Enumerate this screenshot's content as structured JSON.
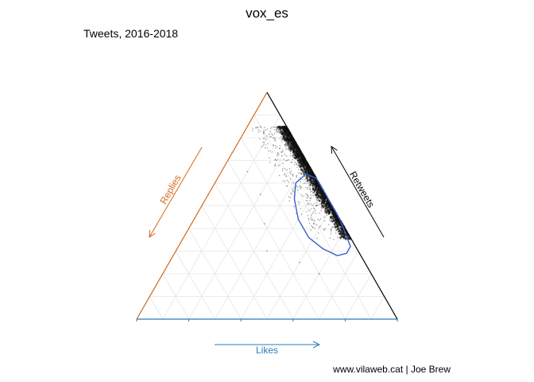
{
  "chart_data": {
    "type": "scatter",
    "title": "vox_es",
    "subtitle": "Tweets, 2016-2018",
    "caption": "www.vilaweb.cat | Joe Brew",
    "axes": {
      "likes": {
        "label": "Likes",
        "color": "#2b7bba"
      },
      "replies": {
        "label": "Replies",
        "color": "#d2691e"
      },
      "retweets": {
        "label": "Retweets",
        "color": "#000000"
      }
    },
    "ternary_range": [
      0,
      1
    ],
    "grid": true,
    "point_color": "#333333",
    "contour_color": "#3a5fcd",
    "cluster": {
      "replies_share": [
        0.0,
        0.06
      ],
      "retweets_share": [
        0.35,
        0.85
      ],
      "density_center": {
        "likes": 0.42,
        "retweets": 0.55,
        "replies": 0.03
      }
    },
    "outlier_points": [
      {
        "likes": 0.35,
        "retweets": 0.3,
        "replies": 0.35
      },
      {
        "likes": 0.28,
        "retweets": 0.42,
        "replies": 0.3
      },
      {
        "likes": 0.5,
        "retweets": 0.25,
        "replies": 0.25
      },
      {
        "likes": 0.2,
        "retweets": 0.55,
        "replies": 0.25
      },
      {
        "likes": 0.6,
        "retweets": 0.2,
        "replies": 0.2
      },
      {
        "likes": 0.1,
        "retweets": 0.65,
        "replies": 0.25
      }
    ],
    "contour": [
      {
        "likes": 0.38,
        "retweets": 0.62,
        "replies": 0.0
      },
      {
        "likes": 0.33,
        "retweets": 0.64,
        "replies": 0.03
      },
      {
        "likes": 0.31,
        "retweets": 0.6,
        "replies": 0.09
      },
      {
        "likes": 0.34,
        "retweets": 0.53,
        "replies": 0.13
      },
      {
        "likes": 0.4,
        "retweets": 0.44,
        "replies": 0.16
      },
      {
        "likes": 0.48,
        "retweets": 0.36,
        "replies": 0.16
      },
      {
        "likes": 0.56,
        "retweets": 0.31,
        "replies": 0.13
      },
      {
        "likes": 0.63,
        "retweets": 0.28,
        "replies": 0.09
      },
      {
        "likes": 0.66,
        "retweets": 0.29,
        "replies": 0.05
      },
      {
        "likes": 0.66,
        "retweets": 0.32,
        "replies": 0.02
      },
      {
        "likes": 0.56,
        "retweets": 0.44,
        "replies": 0.0
      }
    ]
  }
}
